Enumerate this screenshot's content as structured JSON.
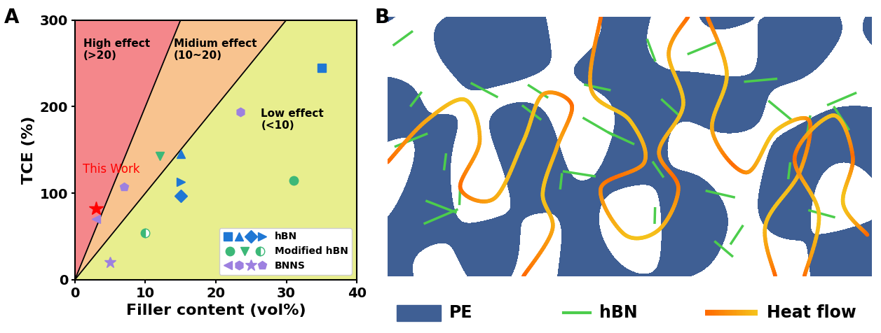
{
  "panel_labels": [
    "A",
    "B"
  ],
  "chart_data": {
    "type": "scatter",
    "xlabel": "Filler content (vol%)",
    "ylabel": "TCE (%)",
    "xlim": [
      0,
      40
    ],
    "xticks": [
      0,
      10,
      20,
      30,
      40
    ],
    "ylim": [
      0,
      300
    ],
    "yticks": [
      0,
      100,
      200,
      300
    ],
    "regions": [
      {
        "label": "High effect\n(>20)",
        "slope_min": 20,
        "slope_max": null,
        "color": "#f4878b"
      },
      {
        "label": "Midium effect\n(10~20)",
        "slope_min": 10,
        "slope_max": 20,
        "color": "#f8c38f"
      },
      {
        "label": "Low effect\n(<10)",
        "slope_min": null,
        "slope_max": 10,
        "color": "#e8ee8e"
      }
    ],
    "series": [
      {
        "name": "hBN",
        "color": "#1f77d4",
        "marker": "square",
        "x": [
          35
        ],
        "values": [
          245
        ]
      },
      {
        "name": "hBN",
        "color": "#1f77d4",
        "marker": "triangle_up",
        "x": [
          15
        ],
        "values": [
          145
        ]
      },
      {
        "name": "hBN",
        "color": "#1f77d4",
        "marker": "diamond",
        "x": [
          15
        ],
        "values": [
          97
        ]
      },
      {
        "name": "hBN",
        "color": "#1f77d4",
        "marker": "triangle_right",
        "x": [
          15
        ],
        "values": [
          113
        ]
      },
      {
        "name": "Modified hBN",
        "color": "#3cb878",
        "marker": "circle",
        "x": [
          31
        ],
        "values": [
          115
        ]
      },
      {
        "name": "Modified hBN",
        "color": "#3cb878",
        "marker": "triangle_down",
        "x": [
          12
        ],
        "values": [
          143
        ]
      },
      {
        "name": "Modified hBN",
        "color": "#3cb878",
        "marker": "half_circle",
        "x": [
          10
        ],
        "values": [
          54
        ]
      },
      {
        "name": "BNNS",
        "color": "#9d80e0",
        "marker": "triangle_left",
        "x": [
          3
        ],
        "values": [
          70
        ]
      },
      {
        "name": "BNNS",
        "color": "#9d80e0",
        "marker": "hexagon",
        "x": [
          23.5
        ],
        "values": [
          194
        ]
      },
      {
        "name": "BNNS",
        "color": "#9d80e0",
        "marker": "star",
        "x": [
          5
        ],
        "values": [
          20
        ]
      },
      {
        "name": "BNNS",
        "color": "#9d80e0",
        "marker": "pentagon",
        "x": [
          7
        ],
        "values": [
          107
        ]
      }
    ],
    "highlight": {
      "label": "This Work",
      "x": 3,
      "y": 82,
      "color": "#ff0000",
      "marker": "star"
    },
    "legend": "lower right"
  },
  "diagram": {
    "legend": [
      {
        "name": "PE",
        "color": "#3f5f94"
      },
      {
        "name": "hBN",
        "color": "#4ccd4c"
      },
      {
        "name": "Heat flow",
        "colors": [
          "#ff6a00",
          "#f5c21b"
        ]
      }
    ]
  }
}
